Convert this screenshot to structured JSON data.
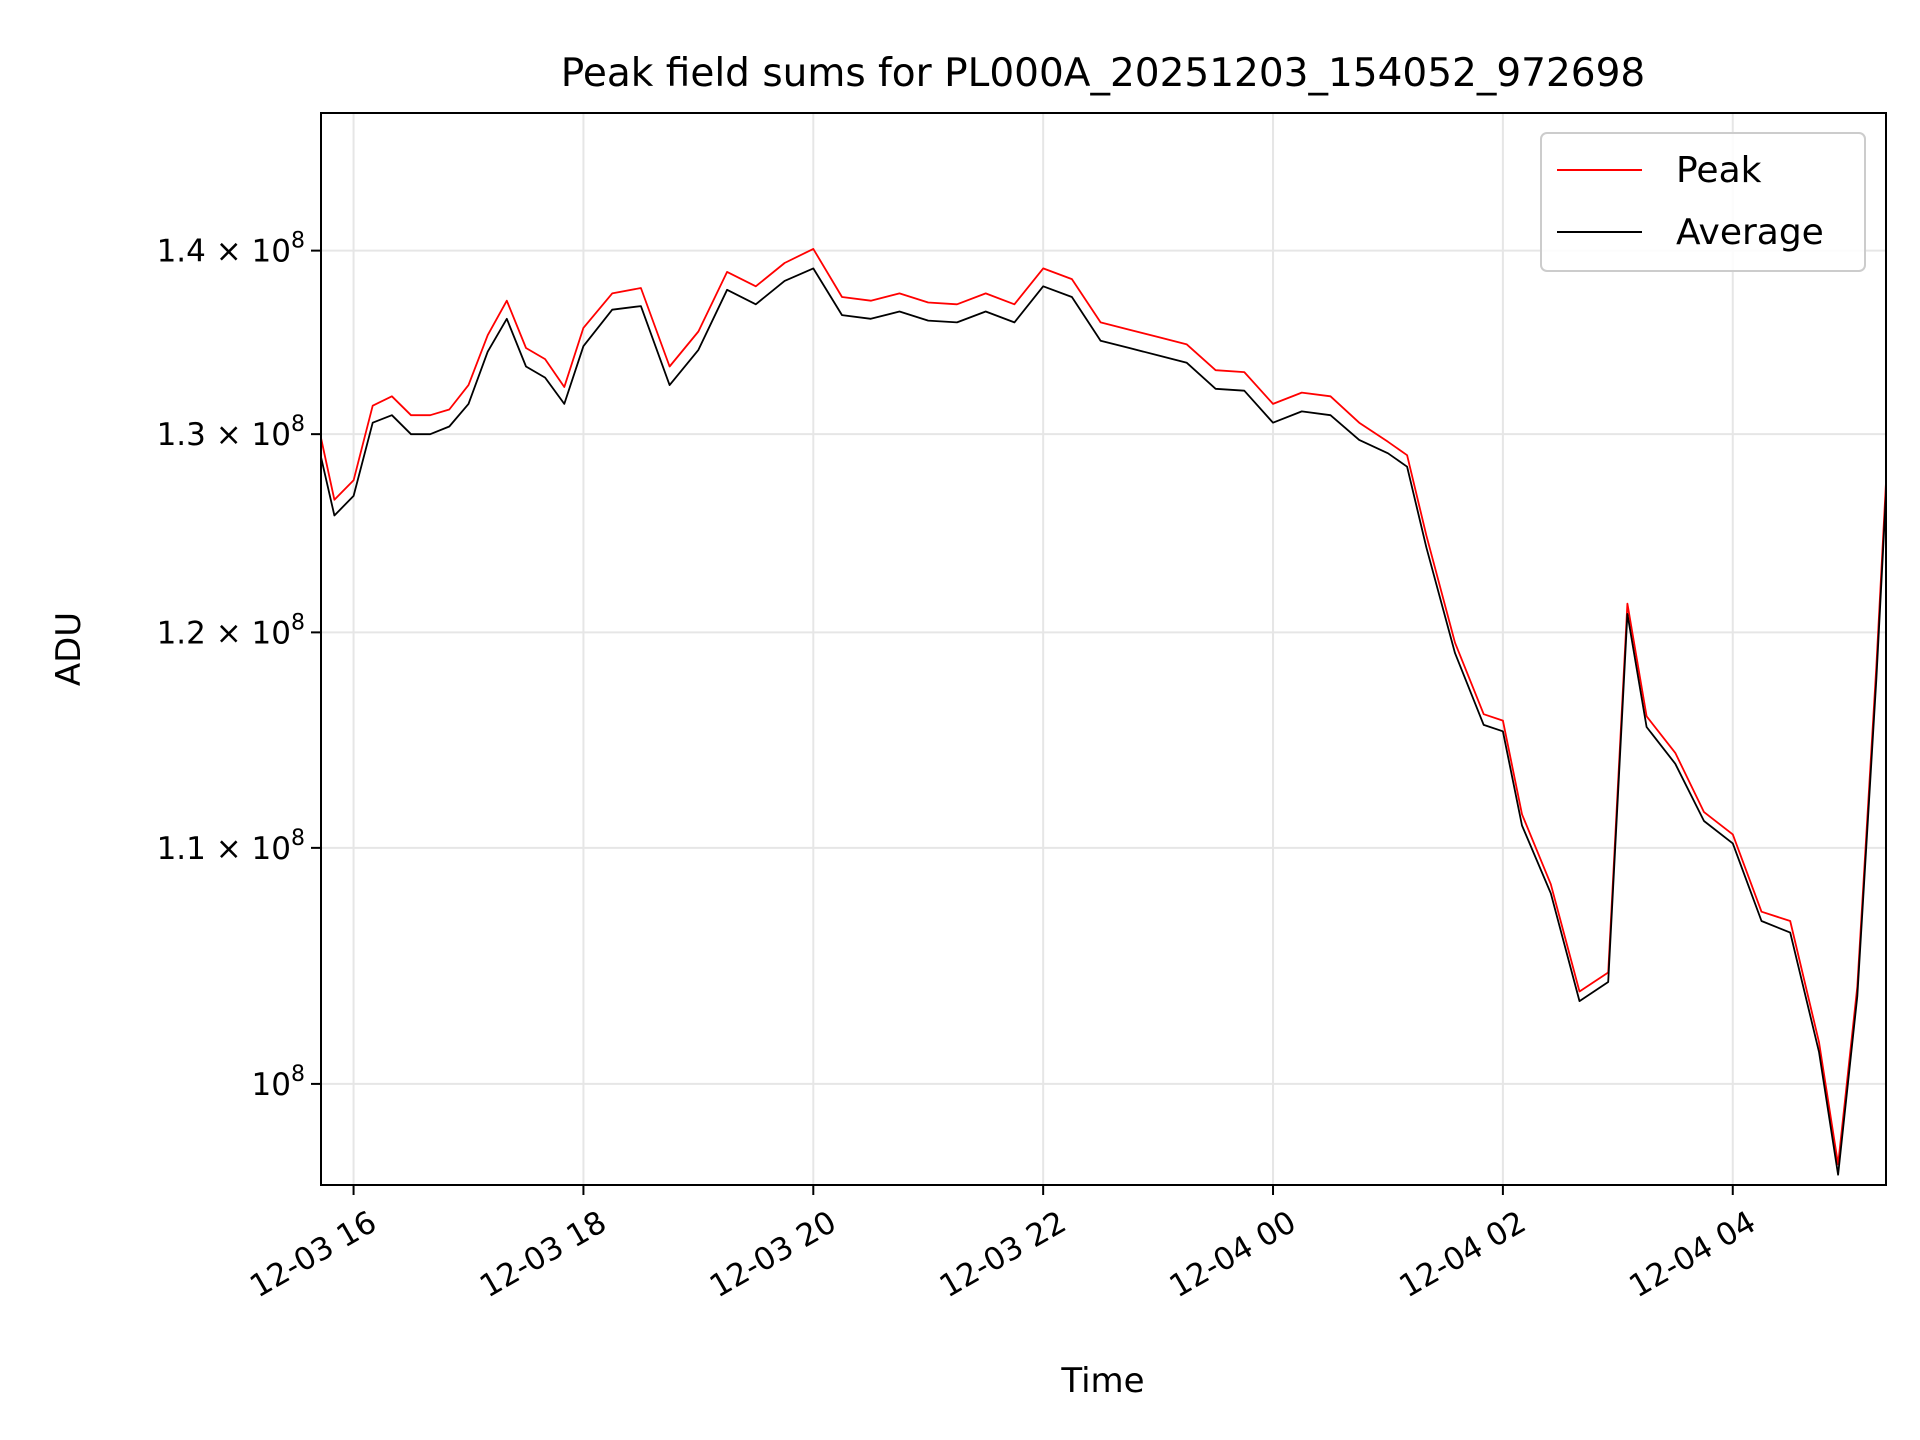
{
  "chart_data": {
    "type": "line",
    "title": "Peak field sums for PL000A_20251203_154052_972698",
    "xlabel": "Time",
    "ylabel": "ADU",
    "x_range": [
      "2025-12-03 15:43",
      "2025-12-04 05:20"
    ],
    "y_range": [
      96000000,
      148000000
    ],
    "y_scale": "log",
    "grid": true,
    "legend_position": "top-right",
    "x_ticks": [
      {
        "value": "2025-12-03 16:00",
        "label": "12-03 16"
      },
      {
        "value": "2025-12-03 18:00",
        "label": "12-03 18"
      },
      {
        "value": "2025-12-03 20:00",
        "label": "12-03 20"
      },
      {
        "value": "2025-12-03 22:00",
        "label": "12-03 22"
      },
      {
        "value": "2025-12-04 00:00",
        "label": "12-04 00"
      },
      {
        "value": "2025-12-04 02:00",
        "label": "12-04 02"
      },
      {
        "value": "2025-12-04 04:00",
        "label": "12-04 04"
      }
    ],
    "y_ticks": [
      {
        "value": 100000000,
        "base": "10",
        "exp": "8"
      },
      {
        "value": 110000000,
        "base": "1.1 × 10",
        "exp": "8"
      },
      {
        "value": 120000000,
        "base": "1.2 × 10",
        "exp": "8"
      },
      {
        "value": 130000000,
        "base": "1.3 × 10",
        "exp": "8"
      },
      {
        "value": 140000000,
        "base": "1.4 × 10",
        "exp": "8"
      }
    ],
    "series": [
      {
        "name": "Peak",
        "color": "#ff0000",
        "data": [
          [
            "2025-12-03 15:43",
            129800000
          ],
          [
            "2025-12-03 15:50",
            126600000
          ],
          [
            "2025-12-03 16:00",
            127600000
          ],
          [
            "2025-12-03 16:10",
            131500000
          ],
          [
            "2025-12-03 16:20",
            132000000
          ],
          [
            "2025-12-03 16:30",
            131000000
          ],
          [
            "2025-12-03 16:40",
            131000000
          ],
          [
            "2025-12-03 16:50",
            131300000
          ],
          [
            "2025-12-03 17:00",
            132600000
          ],
          [
            "2025-12-03 17:10",
            135300000
          ],
          [
            "2025-12-03 17:20",
            137200000
          ],
          [
            "2025-12-03 17:30",
            134600000
          ],
          [
            "2025-12-03 17:40",
            134000000
          ],
          [
            "2025-12-03 17:50",
            132500000
          ],
          [
            "2025-12-03 18:00",
            135700000
          ],
          [
            "2025-12-03 18:15",
            137600000
          ],
          [
            "2025-12-03 18:30",
            137900000
          ],
          [
            "2025-12-03 18:45",
            133600000
          ],
          [
            "2025-12-03 19:00",
            135500000
          ],
          [
            "2025-12-03 19:15",
            138800000
          ],
          [
            "2025-12-03 19:30",
            138000000
          ],
          [
            "2025-12-03 19:45",
            139300000
          ],
          [
            "2025-12-03 20:00",
            140100000
          ],
          [
            "2025-12-03 20:15",
            137400000
          ],
          [
            "2025-12-03 20:30",
            137200000
          ],
          [
            "2025-12-03 20:45",
            137600000
          ],
          [
            "2025-12-03 21:00",
            137100000
          ],
          [
            "2025-12-03 21:15",
            137000000
          ],
          [
            "2025-12-03 21:30",
            137600000
          ],
          [
            "2025-12-03 21:45",
            137000000
          ],
          [
            "2025-12-03 22:00",
            139000000
          ],
          [
            "2025-12-03 22:15",
            138400000
          ],
          [
            "2025-12-03 22:30",
            136000000
          ],
          [
            "2025-12-03 22:45",
            135600000
          ],
          [
            "2025-12-03 23:00",
            135200000
          ],
          [
            "2025-12-03 23:15",
            134800000
          ],
          [
            "2025-12-03 23:30",
            133400000
          ],
          [
            "2025-12-03 23:45",
            133300000
          ],
          [
            "2025-12-04 00:00",
            131600000
          ],
          [
            "2025-12-04 00:15",
            132200000
          ],
          [
            "2025-12-04 00:30",
            132000000
          ],
          [
            "2025-12-04 00:45",
            130600000
          ],
          [
            "2025-12-04 01:00",
            129600000
          ],
          [
            "2025-12-04 01:10",
            128900000
          ],
          [
            "2025-12-04 01:20",
            124800000
          ],
          [
            "2025-12-04 01:35",
            119500000
          ],
          [
            "2025-12-04 01:50",
            116100000
          ],
          [
            "2025-12-04 02:00",
            115800000
          ],
          [
            "2025-12-04 02:10",
            111500000
          ],
          [
            "2025-12-04 02:25",
            108400000
          ],
          [
            "2025-12-04 02:40",
            103800000
          ],
          [
            "2025-12-04 02:55",
            104600000
          ],
          [
            "2025-12-04 03:05",
            121400000
          ],
          [
            "2025-12-04 03:15",
            116000000
          ],
          [
            "2025-12-04 03:30",
            114300000
          ],
          [
            "2025-12-04 03:45",
            111600000
          ],
          [
            "2025-12-04 04:00",
            110600000
          ],
          [
            "2025-12-04 04:15",
            107200000
          ],
          [
            "2025-12-04 04:30",
            106800000
          ],
          [
            "2025-12-04 04:45",
            101700000
          ],
          [
            "2025-12-04 04:55",
            96800000
          ],
          [
            "2025-12-04 05:05",
            104000000
          ],
          [
            "2025-12-04 05:15",
            118400000
          ],
          [
            "2025-12-04 05:20",
            127500000
          ]
        ]
      },
      {
        "name": "Average",
        "color": "#000000",
        "data": [
          [
            "2025-12-03 15:43",
            128800000
          ],
          [
            "2025-12-03 15:50",
            125800000
          ],
          [
            "2025-12-03 16:00",
            126800000
          ],
          [
            "2025-12-03 16:10",
            130600000
          ],
          [
            "2025-12-03 16:20",
            131000000
          ],
          [
            "2025-12-03 16:30",
            130000000
          ],
          [
            "2025-12-03 16:40",
            130000000
          ],
          [
            "2025-12-03 16:50",
            130400000
          ],
          [
            "2025-12-03 17:00",
            131600000
          ],
          [
            "2025-12-03 17:10",
            134400000
          ],
          [
            "2025-12-03 17:20",
            136200000
          ],
          [
            "2025-12-03 17:30",
            133600000
          ],
          [
            "2025-12-03 17:40",
            133000000
          ],
          [
            "2025-12-03 17:50",
            131600000
          ],
          [
            "2025-12-03 18:00",
            134700000
          ],
          [
            "2025-12-03 18:15",
            136700000
          ],
          [
            "2025-12-03 18:30",
            136900000
          ],
          [
            "2025-12-03 18:45",
            132600000
          ],
          [
            "2025-12-03 19:00",
            134500000
          ],
          [
            "2025-12-03 19:15",
            137800000
          ],
          [
            "2025-12-03 19:30",
            137000000
          ],
          [
            "2025-12-03 19:45",
            138300000
          ],
          [
            "2025-12-03 20:00",
            139000000
          ],
          [
            "2025-12-03 20:15",
            136400000
          ],
          [
            "2025-12-03 20:30",
            136200000
          ],
          [
            "2025-12-03 20:45",
            136600000
          ],
          [
            "2025-12-03 21:00",
            136100000
          ],
          [
            "2025-12-03 21:15",
            136000000
          ],
          [
            "2025-12-03 21:30",
            136600000
          ],
          [
            "2025-12-03 21:45",
            136000000
          ],
          [
            "2025-12-03 22:00",
            138000000
          ],
          [
            "2025-12-03 22:15",
            137400000
          ],
          [
            "2025-12-03 22:30",
            135000000
          ],
          [
            "2025-12-03 22:45",
            134600000
          ],
          [
            "2025-12-03 23:00",
            134200000
          ],
          [
            "2025-12-03 23:15",
            133800000
          ],
          [
            "2025-12-03 23:30",
            132400000
          ],
          [
            "2025-12-03 23:45",
            132300000
          ],
          [
            "2025-12-04 00:00",
            130600000
          ],
          [
            "2025-12-04 00:15",
            131200000
          ],
          [
            "2025-12-04 00:30",
            131000000
          ],
          [
            "2025-12-04 00:45",
            129700000
          ],
          [
            "2025-12-04 01:00",
            129000000
          ],
          [
            "2025-12-04 01:10",
            128300000
          ],
          [
            "2025-12-04 01:20",
            124200000
          ],
          [
            "2025-12-04 01:35",
            119000000
          ],
          [
            "2025-12-04 01:50",
            115600000
          ],
          [
            "2025-12-04 02:00",
            115300000
          ],
          [
            "2025-12-04 02:10",
            111000000
          ],
          [
            "2025-12-04 02:25",
            108000000
          ],
          [
            "2025-12-04 02:40",
            103400000
          ],
          [
            "2025-12-04 02:55",
            104200000
          ],
          [
            "2025-12-04 03:05",
            120900000
          ],
          [
            "2025-12-04 03:15",
            115500000
          ],
          [
            "2025-12-04 03:30",
            113800000
          ],
          [
            "2025-12-04 03:45",
            111200000
          ],
          [
            "2025-12-04 04:00",
            110200000
          ],
          [
            "2025-12-04 04:15",
            106800000
          ],
          [
            "2025-12-04 04:30",
            106300000
          ],
          [
            "2025-12-04 04:45",
            101300000
          ],
          [
            "2025-12-04 04:55",
            96400000
          ],
          [
            "2025-12-04 05:05",
            103600000
          ],
          [
            "2025-12-04 05:15",
            117800000
          ],
          [
            "2025-12-04 05:20",
            126900000
          ]
        ]
      }
    ],
    "colors": {
      "background": "#ffffff",
      "grid": "#e6e6e6",
      "axes": "#000000"
    }
  }
}
